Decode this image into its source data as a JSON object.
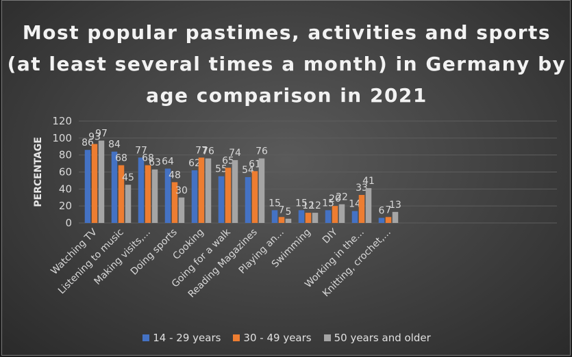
{
  "chart_data": {
    "type": "bar",
    "title": "Most popular pastimes, activities and sports (at least several times a month) in Germany by age comparison in 2021",
    "ylabel": "PERCENTAGE",
    "xlabel": "",
    "ylim": [
      0,
      120
    ],
    "yticks": [
      0,
      20,
      40,
      60,
      80,
      100,
      120
    ],
    "grid": true,
    "legend_position": "bottom",
    "categories": [
      "Watching TV",
      "Listening to music",
      "Making visits,...",
      "Doing sports",
      "Cooking",
      "Going for a walk",
      "Reading Magazines",
      "Playing an...",
      "Swimming",
      "DIY",
      "Working in the...",
      "Knitting, crochet,..."
    ],
    "series": [
      {
        "name": "14 - 29 years",
        "color": "#4472c4",
        "values": [
          86,
          84,
          77,
          64,
          62,
          55,
          54,
          15,
          15,
          15,
          14,
          6
        ]
      },
      {
        "name": "30 - 49 years",
        "color": "#ed7d31",
        "values": [
          93,
          68,
          68,
          48,
          77,
          65,
          61,
          7,
          12,
          20,
          33,
          7
        ]
      },
      {
        "name": "50 years and older",
        "color": "#a5a5a5",
        "values": [
          97,
          45,
          63,
          30,
          76,
          74,
          76,
          5,
          12,
          22,
          41,
          13
        ]
      }
    ]
  }
}
